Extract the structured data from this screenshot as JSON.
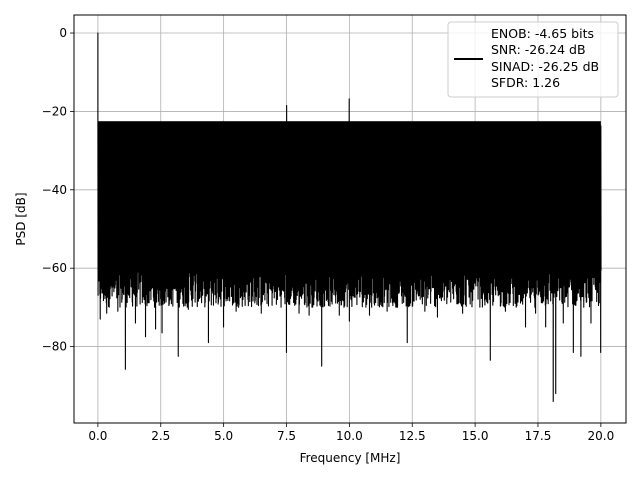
{
  "chart_data": {
    "type": "line",
    "title": "",
    "xlabel": "Frequency [MHz]",
    "ylabel": "PSD [dB]",
    "xlim": [
      -0.95,
      21.0
    ],
    "ylim": [
      -99.5,
      4.6
    ],
    "xticks": [
      0.0,
      2.5,
      5.0,
      7.5,
      10.0,
      12.5,
      15.0,
      17.5,
      20.0
    ],
    "xtick_labels": [
      "0.0",
      "2.5",
      "5.0",
      "7.5",
      "10.0",
      "12.5",
      "15.0",
      "17.5",
      "20.0"
    ],
    "yticks": [
      0,
      -20,
      -40,
      -60,
      -80
    ],
    "ytick_labels": [
      "0",
      "−20",
      "−40",
      "−60",
      "−80"
    ],
    "grid": true,
    "legend_placement": "top-right",
    "series": [
      {
        "color": "#000000",
        "x_range": [
          0.0,
          20.0
        ],
        "noise_floor_top": -23.5,
        "noise_floor_bottom": -65,
        "peak": {
          "x": 0.0,
          "y": 0.0
        },
        "spurs": [
          {
            "x": 10.0,
            "y": -16.8
          },
          {
            "x": 7.5,
            "y": -18.5
          }
        ],
        "dips": [
          {
            "x": 0.1,
            "y": -73.0
          },
          {
            "x": 0.35,
            "y": -71.5
          },
          {
            "x": 0.8,
            "y": -71.0
          },
          {
            "x": 1.1,
            "y": -85.8
          },
          {
            "x": 1.5,
            "y": -74.0
          },
          {
            "x": 1.9,
            "y": -77.5
          },
          {
            "x": 2.3,
            "y": -75.5
          },
          {
            "x": 2.55,
            "y": -76.5
          },
          {
            "x": 3.2,
            "y": -82.5
          },
          {
            "x": 3.6,
            "y": -70.5
          },
          {
            "x": 4.4,
            "y": -79.0
          },
          {
            "x": 5.0,
            "y": -75.0
          },
          {
            "x": 5.5,
            "y": -71.0
          },
          {
            "x": 6.5,
            "y": -71.5
          },
          {
            "x": 7.5,
            "y": -81.5
          },
          {
            "x": 8.0,
            "y": -71.5
          },
          {
            "x": 8.4,
            "y": -72.0
          },
          {
            "x": 8.9,
            "y": -85.0
          },
          {
            "x": 9.6,
            "y": -72.0
          },
          {
            "x": 10.0,
            "y": -73.5
          },
          {
            "x": 10.8,
            "y": -72.0
          },
          {
            "x": 11.5,
            "y": -71.0
          },
          {
            "x": 12.3,
            "y": -79.0
          },
          {
            "x": 13.0,
            "y": -71.0
          },
          {
            "x": 13.5,
            "y": -72.5
          },
          {
            "x": 14.5,
            "y": -71.5
          },
          {
            "x": 15.6,
            "y": -83.5
          },
          {
            "x": 16.2,
            "y": -71.0
          },
          {
            "x": 17.0,
            "y": -75.0
          },
          {
            "x": 17.4,
            "y": -71.5
          },
          {
            "x": 17.8,
            "y": -75.0
          },
          {
            "x": 18.1,
            "y": -94.0
          },
          {
            "x": 18.2,
            "y": -92.0
          },
          {
            "x": 18.5,
            "y": -74.0
          },
          {
            "x": 18.9,
            "y": -81.5
          },
          {
            "x": 19.2,
            "y": -82.5
          },
          {
            "x": 19.6,
            "y": -74.0
          },
          {
            "x": 20.0,
            "y": -81.5
          }
        ]
      }
    ],
    "legend": {
      "lines": [
        "ENOB: -4.65 bits",
        "SNR: -26.24 dB",
        "SINAD: -26.25 dB",
        "SFDR: 1.26"
      ]
    }
  }
}
